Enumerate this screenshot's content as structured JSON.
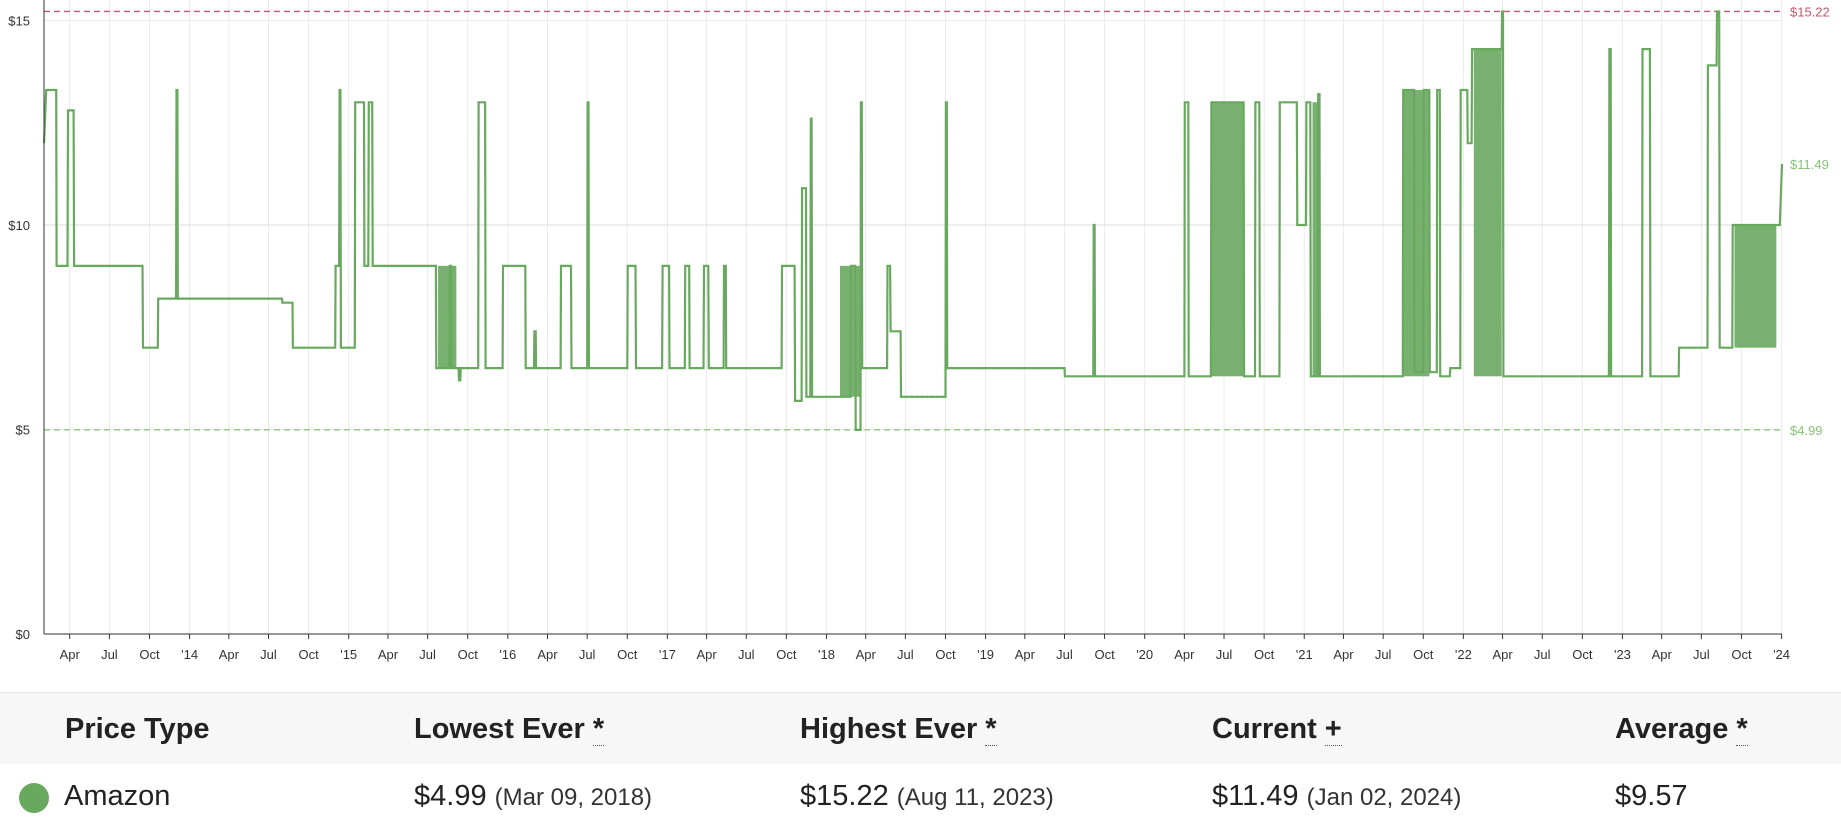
{
  "colors": {
    "series": "#69a95f",
    "high_line": "#c4566f",
    "low_line": "#86c379",
    "grid": "#ebebeb",
    "axis": "#333333"
  },
  "chart_data": {
    "type": "line",
    "y_ticks": [
      {
        "value": 0,
        "label": "$0"
      },
      {
        "value": 5,
        "label": "$5"
      },
      {
        "value": 10,
        "label": "$10"
      },
      {
        "value": 15,
        "label": "$15"
      }
    ],
    "ylim": [
      0,
      15.5
    ],
    "xlim": [
      "2013-02-01",
      "2024-01-02"
    ],
    "x_ticks": [
      {
        "date": "2013-04-01",
        "label": "Apr"
      },
      {
        "date": "2013-07-01",
        "label": "Jul"
      },
      {
        "date": "2013-10-01",
        "label": "Oct"
      },
      {
        "date": "2014-01-01",
        "label": "'14"
      },
      {
        "date": "2014-04-01",
        "label": "Apr"
      },
      {
        "date": "2014-07-01",
        "label": "Jul"
      },
      {
        "date": "2014-10-01",
        "label": "Oct"
      },
      {
        "date": "2015-01-01",
        "label": "'15"
      },
      {
        "date": "2015-04-01",
        "label": "Apr"
      },
      {
        "date": "2015-07-01",
        "label": "Jul"
      },
      {
        "date": "2015-10-01",
        "label": "Oct"
      },
      {
        "date": "2016-01-01",
        "label": "'16"
      },
      {
        "date": "2016-04-01",
        "label": "Apr"
      },
      {
        "date": "2016-07-01",
        "label": "Jul"
      },
      {
        "date": "2016-10-01",
        "label": "Oct"
      },
      {
        "date": "2017-01-01",
        "label": "'17"
      },
      {
        "date": "2017-04-01",
        "label": "Apr"
      },
      {
        "date": "2017-07-01",
        "label": "Jul"
      },
      {
        "date": "2017-10-01",
        "label": "Oct"
      },
      {
        "date": "2018-01-01",
        "label": "'18"
      },
      {
        "date": "2018-04-01",
        "label": "Apr"
      },
      {
        "date": "2018-07-01",
        "label": "Jul"
      },
      {
        "date": "2018-10-01",
        "label": "Oct"
      },
      {
        "date": "2019-01-01",
        "label": "'19"
      },
      {
        "date": "2019-04-01",
        "label": "Apr"
      },
      {
        "date": "2019-07-01",
        "label": "Jul"
      },
      {
        "date": "2019-10-01",
        "label": "Oct"
      },
      {
        "date": "2020-01-01",
        "label": "'20"
      },
      {
        "date": "2020-04-01",
        "label": "Apr"
      },
      {
        "date": "2020-07-01",
        "label": "Jul"
      },
      {
        "date": "2020-10-01",
        "label": "Oct"
      },
      {
        "date": "2021-01-01",
        "label": "'21"
      },
      {
        "date": "2021-04-01",
        "label": "Apr"
      },
      {
        "date": "2021-07-01",
        "label": "Jul"
      },
      {
        "date": "2021-10-01",
        "label": "Oct"
      },
      {
        "date": "2022-01-01",
        "label": "'22"
      },
      {
        "date": "2022-04-01",
        "label": "Apr"
      },
      {
        "date": "2022-07-01",
        "label": "Jul"
      },
      {
        "date": "2022-10-01",
        "label": "Oct"
      },
      {
        "date": "2023-01-01",
        "label": "'23"
      },
      {
        "date": "2023-04-01",
        "label": "Apr"
      },
      {
        "date": "2023-07-01",
        "label": "Jul"
      },
      {
        "date": "2023-10-01",
        "label": "Oct"
      },
      {
        "date": "2024-01-01",
        "label": "'24"
      }
    ],
    "reference_lines": [
      {
        "value": 15.22,
        "label": "$15.22",
        "kind": "highest"
      },
      {
        "value": 4.99,
        "label": "$4.99",
        "kind": "lowest"
      }
    ],
    "current_marker": {
      "value": 11.49,
      "label": "$11.49"
    },
    "series": [
      {
        "name": "Amazon",
        "points": [
          [
            "2013-02-01",
            12.0
          ],
          [
            "2013-02-06",
            13.3
          ],
          [
            "2013-03-01",
            13.3
          ],
          [
            "2013-03-02",
            9.0
          ],
          [
            "2013-03-27",
            9.0
          ],
          [
            "2013-03-28",
            12.8
          ],
          [
            "2013-04-10",
            12.8
          ],
          [
            "2013-04-11",
            9.0
          ],
          [
            "2013-09-15",
            9.0
          ],
          [
            "2013-09-16",
            7.0
          ],
          [
            "2013-10-20",
            7.0
          ],
          [
            "2013-10-21",
            8.2
          ],
          [
            "2013-12-01",
            8.2
          ],
          [
            "2013-12-02",
            13.3
          ],
          [
            "2013-12-04",
            13.3
          ],
          [
            "2013-12-05",
            8.2
          ],
          [
            "2014-08-01",
            8.2
          ],
          [
            "2014-08-02",
            8.1
          ],
          [
            "2014-08-25",
            8.1
          ],
          [
            "2014-08-26",
            7.0
          ],
          [
            "2014-12-01",
            7.0
          ],
          [
            "2014-12-02",
            9.0
          ],
          [
            "2014-12-10",
            9.0
          ],
          [
            "2014-12-11",
            13.3
          ],
          [
            "2014-12-13",
            13.3
          ],
          [
            "2014-12-14",
            7.0
          ],
          [
            "2015-01-15",
            7.0
          ],
          [
            "2015-01-16",
            13.0
          ],
          [
            "2015-02-05",
            13.0
          ],
          [
            "2015-02-06",
            9.0
          ],
          [
            "2015-02-15",
            9.0
          ],
          [
            "2015-02-16",
            13.0
          ],
          [
            "2015-02-24",
            13.0
          ],
          [
            "2015-02-25",
            9.0
          ],
          [
            "2015-07-20",
            9.0
          ],
          [
            "2015-07-21",
            6.5
          ],
          [
            "2015-08-20",
            6.5
          ],
          [
            "2015-08-21",
            9.0
          ],
          [
            "2015-08-24",
            9.0
          ],
          [
            "2015-08-25",
            6.5
          ],
          [
            "2015-09-10",
            6.5
          ],
          [
            "2015-09-11",
            6.2
          ],
          [
            "2015-09-14",
            6.2
          ],
          [
            "2015-09-15",
            6.5
          ],
          [
            "2015-10-25",
            6.5
          ],
          [
            "2015-10-26",
            13.0
          ],
          [
            "2015-11-10",
            13.0
          ],
          [
            "2015-11-11",
            6.5
          ],
          [
            "2015-12-20",
            6.5
          ],
          [
            "2015-12-21",
            9.0
          ],
          [
            "2016-02-10",
            9.0
          ],
          [
            "2016-02-11",
            6.5
          ],
          [
            "2016-03-01",
            6.5
          ],
          [
            "2016-03-02",
            7.4
          ],
          [
            "2016-03-05",
            7.4
          ],
          [
            "2016-03-06",
            6.5
          ],
          [
            "2016-05-01",
            6.5
          ],
          [
            "2016-05-02",
            9.0
          ],
          [
            "2016-05-25",
            9.0
          ],
          [
            "2016-05-26",
            6.5
          ],
          [
            "2016-07-01",
            6.5
          ],
          [
            "2016-07-02",
            13.0
          ],
          [
            "2016-07-04",
            13.0
          ],
          [
            "2016-07-05",
            6.5
          ],
          [
            "2016-10-01",
            6.5
          ],
          [
            "2016-10-02",
            9.0
          ],
          [
            "2016-10-20",
            9.0
          ],
          [
            "2016-10-21",
            6.5
          ],
          [
            "2016-12-20",
            6.5
          ],
          [
            "2016-12-21",
            9.0
          ],
          [
            "2017-01-05",
            9.0
          ],
          [
            "2017-01-06",
            6.5
          ],
          [
            "2017-02-10",
            6.5
          ],
          [
            "2017-02-11",
            9.0
          ],
          [
            "2017-02-20",
            9.0
          ],
          [
            "2017-02-21",
            6.5
          ],
          [
            "2017-03-25",
            6.5
          ],
          [
            "2017-03-26",
            9.0
          ],
          [
            "2017-04-05",
            9.0
          ],
          [
            "2017-04-06",
            6.5
          ],
          [
            "2017-05-10",
            6.5
          ],
          [
            "2017-05-11",
            9.0
          ],
          [
            "2017-05-15",
            9.0
          ],
          [
            "2017-05-16",
            6.5
          ],
          [
            "2017-09-20",
            6.5
          ],
          [
            "2017-09-21",
            9.0
          ],
          [
            "2017-10-20",
            9.0
          ],
          [
            "2017-10-21",
            5.7
          ],
          [
            "2017-11-05",
            5.7
          ],
          [
            "2017-11-06",
            10.9
          ],
          [
            "2017-11-15",
            10.9
          ],
          [
            "2017-11-16",
            5.8
          ],
          [
            "2017-11-25",
            5.8
          ],
          [
            "2017-11-26",
            12.6
          ],
          [
            "2017-11-28",
            12.6
          ],
          [
            "2017-11-29",
            5.8
          ],
          [
            "2018-02-25",
            5.8
          ],
          [
            "2018-02-26",
            9.0
          ],
          [
            "2018-03-08",
            9.0
          ],
          [
            "2018-03-09",
            4.99
          ],
          [
            "2018-03-20",
            4.99
          ],
          [
            "2018-03-21",
            13.0
          ],
          [
            "2018-03-23",
            13.0
          ],
          [
            "2018-03-24",
            6.5
          ],
          [
            "2018-05-20",
            6.5
          ],
          [
            "2018-05-21",
            9.0
          ],
          [
            "2018-05-27",
            9.0
          ],
          [
            "2018-05-28",
            7.4
          ],
          [
            "2018-06-20",
            7.4
          ],
          [
            "2018-06-21",
            5.8
          ],
          [
            "2018-10-01",
            5.8
          ],
          [
            "2018-10-02",
            13.0
          ],
          [
            "2018-10-04",
            13.0
          ],
          [
            "2018-10-05",
            6.5
          ],
          [
            "2019-07-01",
            6.5
          ],
          [
            "2019-07-02",
            6.3
          ],
          [
            "2019-09-05",
            6.3
          ],
          [
            "2019-09-06",
            10.0
          ],
          [
            "2019-09-08",
            10.0
          ],
          [
            "2019-09-09",
            6.3
          ],
          [
            "2020-04-01",
            6.3
          ],
          [
            "2020-04-02",
            13.0
          ],
          [
            "2020-04-10",
            13.0
          ],
          [
            "2020-04-11",
            6.3
          ],
          [
            "2020-06-01",
            6.3
          ],
          [
            "2020-06-02",
            13.0
          ],
          [
            "2020-08-15",
            13.0
          ],
          [
            "2020-08-16",
            6.3
          ],
          [
            "2020-09-10",
            6.3
          ],
          [
            "2020-09-11",
            13.0
          ],
          [
            "2020-09-20",
            13.0
          ],
          [
            "2020-09-21",
            6.3
          ],
          [
            "2020-11-05",
            6.3
          ],
          [
            "2020-11-06",
            13.0
          ],
          [
            "2020-12-15",
            13.0
          ],
          [
            "2020-12-16",
            10.0
          ],
          [
            "2021-01-05",
            10.0
          ],
          [
            "2021-01-06",
            13.0
          ],
          [
            "2021-01-15",
            13.0
          ],
          [
            "2021-01-16",
            6.3
          ],
          [
            "2021-02-01",
            6.3
          ],
          [
            "2021-02-02",
            13.2
          ],
          [
            "2021-02-05",
            13.2
          ],
          [
            "2021-02-06",
            6.3
          ],
          [
            "2021-08-15",
            6.3
          ],
          [
            "2021-08-16",
            13.3
          ],
          [
            "2021-09-10",
            13.3
          ],
          [
            "2021-09-11",
            6.4
          ],
          [
            "2021-10-01",
            6.4
          ],
          [
            "2021-10-02",
            13.3
          ],
          [
            "2021-10-15",
            13.3
          ],
          [
            "2021-10-16",
            6.4
          ],
          [
            "2021-11-01",
            6.4
          ],
          [
            "2021-11-02",
            13.3
          ],
          [
            "2021-11-08",
            13.3
          ],
          [
            "2021-11-09",
            6.3
          ],
          [
            "2021-12-01",
            6.3
          ],
          [
            "2021-12-02",
            6.5
          ],
          [
            "2021-12-25",
            6.5
          ],
          [
            "2021-12-26",
            13.3
          ],
          [
            "2022-01-10",
            13.3
          ],
          [
            "2022-01-11",
            12.0
          ],
          [
            "2022-01-20",
            12.0
          ],
          [
            "2022-01-21",
            14.3
          ],
          [
            "2022-03-30",
            14.3
          ],
          [
            "2022-03-31",
            15.22
          ],
          [
            "2022-04-02",
            15.22
          ],
          [
            "2022-04-03",
            6.3
          ],
          [
            "2022-12-01",
            6.3
          ],
          [
            "2022-12-02",
            14.3
          ],
          [
            "2022-12-05",
            14.3
          ],
          [
            "2022-12-06",
            6.3
          ],
          [
            "2023-02-15",
            6.3
          ],
          [
            "2023-02-16",
            14.3
          ],
          [
            "2023-03-05",
            14.3
          ],
          [
            "2023-03-06",
            6.3
          ],
          [
            "2023-05-10",
            6.3
          ],
          [
            "2023-05-11",
            7.0
          ],
          [
            "2023-07-15",
            7.0
          ],
          [
            "2023-07-16",
            13.9
          ],
          [
            "2023-08-05",
            13.9
          ],
          [
            "2023-08-06",
            15.22
          ],
          [
            "2023-08-11",
            15.22
          ],
          [
            "2023-08-12",
            7.0
          ],
          [
            "2023-09-10",
            7.0
          ],
          [
            "2023-09-11",
            10.0
          ],
          [
            "2023-12-28",
            10.0
          ],
          [
            "2024-01-02",
            11.49
          ]
        ],
        "oscillation_bands": [
          {
            "start": "2015-07-25",
            "end": "2015-09-05",
            "low": 6.5,
            "high": 9.0
          },
          {
            "start": "2018-02-01",
            "end": "2018-03-20",
            "low": 5.8,
            "high": 9.0
          },
          {
            "start": "2020-06-01",
            "end": "2020-08-15",
            "low": 6.3,
            "high": 13.0
          },
          {
            "start": "2021-01-20",
            "end": "2021-02-05",
            "low": 6.3,
            "high": 13.0
          },
          {
            "start": "2021-08-15",
            "end": "2021-10-15",
            "low": 6.3,
            "high": 13.3
          },
          {
            "start": "2022-01-25",
            "end": "2022-03-30",
            "low": 6.3,
            "high": 14.3
          },
          {
            "start": "2023-09-15",
            "end": "2023-12-20",
            "low": 7.0,
            "high": 10.0
          }
        ],
        "gap_segments": [
          {
            "start": "2018-06-21",
            "end": "2018-10-01",
            "value": 5.8
          },
          {
            "start": "2018-10-05",
            "end": "2019-07-01",
            "value": 6.5
          },
          {
            "start": "2021-04-10",
            "end": "2021-08-15",
            "value": 6.3
          }
        ]
      }
    ]
  },
  "table": {
    "headers": {
      "price_type": "Price Type",
      "lowest": "Lowest Ever",
      "lowest_mark": "*",
      "highest": "Highest Ever",
      "highest_mark": "*",
      "current": "Current",
      "current_mark": "+",
      "average": "Average",
      "average_mark": "*"
    },
    "row": {
      "name": "Amazon",
      "lowest_price": "$4.99",
      "lowest_date": "(Mar 09, 2018)",
      "highest_price": "$15.22",
      "highest_date": "(Aug 11, 2023)",
      "current_price": "$11.49",
      "current_date": "(Jan 02, 2024)",
      "average_price": "$9.57"
    }
  }
}
